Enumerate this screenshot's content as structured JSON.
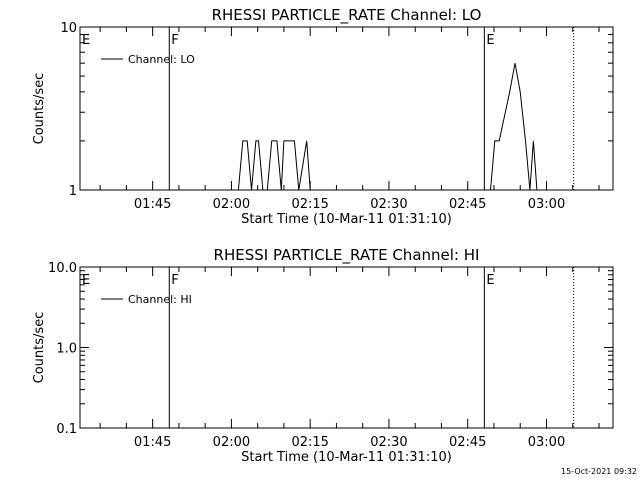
{
  "chart_data": [
    {
      "type": "line",
      "title": "RHESSI PARTICLE_RATE Channel: LO",
      "xlabel": "Start Time (10-Mar-11 01:31:10)",
      "ylabel": "Counts/sec",
      "y_scale": "log",
      "ylim": [
        1,
        10
      ],
      "y_ticks": [
        "1",
        "10"
      ],
      "xlim": [
        "01:31:10",
        "03:12:40"
      ],
      "x_ticks": [
        "01:45",
        "02:00",
        "02:15",
        "02:30",
        "02:45",
        "03:00"
      ],
      "legend": {
        "placement": "top-left",
        "entries": [
          "Channel: LO"
        ]
      },
      "grid": false,
      "markers": [
        {
          "time": "01:48:10",
          "label": "F",
          "style": "solid"
        },
        {
          "time": "02:48:10",
          "label": "E",
          "style": "solid"
        },
        {
          "time": "03:05:10",
          "label": "",
          "style": "dotted"
        }
      ],
      "edge_label": "E",
      "series": [
        {
          "name": "Channel: LO",
          "segments": [
            [
              [
                "02:01:20",
                1
              ],
              [
                "02:02:10",
                2
              ],
              [
                "02:03:00",
                2
              ],
              [
                "02:03:50",
                1
              ],
              [
                "02:04:40",
                2
              ],
              [
                "02:05:10",
                2
              ],
              [
                "02:06:00",
                1
              ],
              [
                "02:06:50",
                1
              ],
              [
                "02:07:40",
                2
              ],
              [
                "02:08:40",
                2
              ],
              [
                "02:09:30",
                1
              ],
              [
                "02:10:00",
                2
              ],
              [
                "02:12:00",
                2
              ],
              [
                "02:12:50",
                1
              ],
              [
                "02:14:20",
                2
              ],
              [
                "02:15:00",
                1
              ]
            ],
            [
              [
                "02:49:20",
                1
              ],
              [
                "02:50:10",
                2
              ],
              [
                "02:51:00",
                2
              ],
              [
                "02:53:00",
                4
              ],
              [
                "02:54:00",
                6
              ],
              [
                "02:55:00",
                4
              ],
              [
                "02:56:00",
                2
              ],
              [
                "02:56:50",
                1
              ],
              [
                "02:57:30",
                2
              ],
              [
                "02:58:10",
                1
              ]
            ]
          ]
        }
      ]
    },
    {
      "type": "line",
      "title": "RHESSI PARTICLE_RATE Channel: HI",
      "xlabel": "Start Time (10-Mar-11 01:31:10)",
      "ylabel": "Counts/sec",
      "y_scale": "log",
      "ylim": [
        0.1,
        10
      ],
      "y_ticks": [
        "0.1",
        "1.0",
        "10.0"
      ],
      "xlim": [
        "01:31:10",
        "03:12:40"
      ],
      "x_ticks": [
        "01:45",
        "02:00",
        "02:15",
        "02:30",
        "02:45",
        "03:00"
      ],
      "legend": {
        "placement": "top-left",
        "entries": [
          "Channel: HI"
        ]
      },
      "grid": false,
      "markers": [
        {
          "time": "01:48:10",
          "label": "F",
          "style": "solid"
        },
        {
          "time": "02:48:10",
          "label": "E",
          "style": "solid"
        },
        {
          "time": "03:05:10",
          "label": "",
          "style": "dotted"
        }
      ],
      "edge_label": "E",
      "series": [
        {
          "name": "Channel: HI",
          "segments": []
        }
      ]
    }
  ],
  "footer": {
    "timestamp": "15-Oct-2021 09:32"
  }
}
